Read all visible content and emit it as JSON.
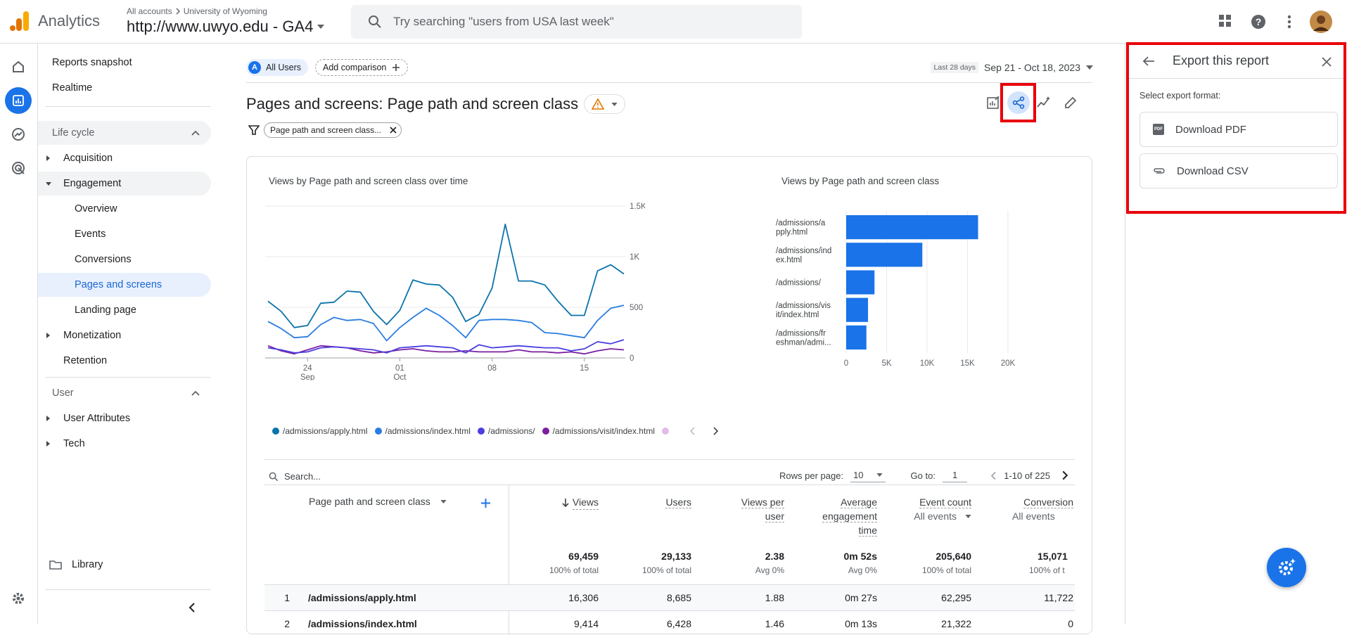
{
  "header": {
    "app_name": "Analytics",
    "breadcrumb_root": "All accounts",
    "breadcrumb_account": "University of Wyoming",
    "property": "http://www.uwyo.edu - GA4",
    "search_placeholder": "Try searching \"users from USA last week\""
  },
  "nav": {
    "reports_snapshot": "Reports snapshot",
    "realtime": "Realtime",
    "lifecycle": "Life cycle",
    "acquisition": "Acquisition",
    "engagement": "Engagement",
    "overview": "Overview",
    "events": "Events",
    "conversions": "Conversions",
    "pages_and_screens": "Pages and screens",
    "landing_page": "Landing page",
    "monetization": "Monetization",
    "retention": "Retention",
    "user": "User",
    "user_attributes": "User Attributes",
    "tech": "Tech",
    "library": "Library"
  },
  "comparison": {
    "segment_badge": "A",
    "segment_label": "All Users",
    "add_label": "Add comparison"
  },
  "date_range": {
    "prefix": "Last 28 days",
    "range": "Sep 21 - Oct 18, 2023"
  },
  "report": {
    "title": "Pages and screens: Page path and screen class",
    "filter_chip": "Page path and screen class..."
  },
  "line_chart": {
    "title": "Views by Page path and screen class over time",
    "y_ticks": [
      "1.5K",
      "1K",
      "500",
      "0"
    ],
    "x_ticks": [
      {
        "day": "24",
        "month": "Sep"
      },
      {
        "day": "01",
        "month": "Oct"
      },
      {
        "day": "08",
        "month": ""
      },
      {
        "day": "15",
        "month": ""
      }
    ],
    "legend": [
      "/admissions/apply.html",
      "/admissions/index.html",
      "/admissions/",
      "/admissions/visit/index.html"
    ]
  },
  "bar_chart": {
    "title": "Views by Page path and screen class",
    "categories": [
      [
        "/admissions/a",
        "pply.html"
      ],
      [
        "/admissions/ind",
        "ex.html"
      ],
      [
        "/admissions/"
      ],
      [
        "/admissions/vis",
        "it/index.html"
      ],
      [
        "/admissions/fr",
        "eshman/admi..."
      ]
    ],
    "x_ticks": [
      "0",
      "5K",
      "10K",
      "15K",
      "20K"
    ]
  },
  "chart_data": [
    {
      "type": "line",
      "title": "Views by Page path and screen class over time",
      "x": [
        "Sep 21",
        "Sep 22",
        "Sep 23",
        "Sep 24",
        "Sep 25",
        "Sep 26",
        "Sep 27",
        "Sep 28",
        "Sep 29",
        "Sep 30",
        "Oct 1",
        "Oct 2",
        "Oct 3",
        "Oct 4",
        "Oct 5",
        "Oct 6",
        "Oct 7",
        "Oct 8",
        "Oct 9",
        "Oct 10",
        "Oct 11",
        "Oct 12",
        "Oct 13",
        "Oct 14",
        "Oct 15",
        "Oct 16",
        "Oct 17",
        "Oct 18"
      ],
      "ylim": [
        0,
        1500
      ],
      "series": [
        {
          "name": "/admissions/apply.html",
          "color": "#0b73ab",
          "values": [
            560,
            460,
            300,
            320,
            540,
            550,
            660,
            650,
            460,
            330,
            470,
            770,
            730,
            720,
            600,
            360,
            430,
            690,
            1320,
            760,
            760,
            720,
            560,
            420,
            420,
            860,
            920,
            830
          ]
        },
        {
          "name": "/admissions/index.html",
          "color": "#2a7de1",
          "values": [
            360,
            290,
            200,
            210,
            330,
            400,
            370,
            380,
            340,
            170,
            300,
            400,
            490,
            420,
            320,
            200,
            370,
            380,
            380,
            370,
            350,
            250,
            240,
            220,
            200,
            370,
            490,
            520
          ]
        },
        {
          "name": "/admissions/",
          "color": "#4b3ee0",
          "values": [
            100,
            80,
            50,
            60,
            100,
            110,
            100,
            90,
            80,
            50,
            100,
            110,
            120,
            110,
            100,
            50,
            130,
            100,
            110,
            120,
            110,
            100,
            100,
            70,
            90,
            160,
            140,
            180
          ]
        },
        {
          "name": "/admissions/visit/index.html",
          "color": "#7b1fa2",
          "values": [
            120,
            70,
            40,
            80,
            120,
            110,
            100,
            70,
            50,
            60,
            80,
            90,
            70,
            60,
            60,
            70,
            60,
            60,
            60,
            80,
            60,
            60,
            50,
            60,
            40,
            70,
            90,
            80
          ]
        }
      ]
    },
    {
      "type": "bar",
      "orientation": "horizontal",
      "title": "Views by Page path and screen class",
      "categories": [
        "/admissions/apply.html",
        "/admissions/index.html",
        "/admissions/",
        "/admissions/visit/index.html",
        "/admissions/freshman/admi..."
      ],
      "values": [
        16306,
        9414,
        3500,
        2700,
        2500
      ],
      "xlim": [
        0,
        20000
      ],
      "color": "#1a73e8"
    }
  ],
  "table": {
    "search_placeholder": "Search...",
    "rows_per_page_label": "Rows per page:",
    "rows_per_page_value": "10",
    "goto_label": "Go to:",
    "goto_value": "1",
    "pagination": "1-10 of 225",
    "dimension_header": "Page path and screen class",
    "headers": {
      "views": "Views",
      "users": "Users",
      "views_per_user": [
        "Views per",
        "user"
      ],
      "avg_engagement": [
        "Average",
        "engagement",
        "time"
      ],
      "event_count": "Event count",
      "event_filter": "All events",
      "conversions": "Conversion",
      "conv_filter": "All events"
    },
    "totals": {
      "views": "69,459",
      "views_sub": "100% of total",
      "users": "29,133",
      "users_sub": "100% of total",
      "vpu": "2.38",
      "vpu_sub": "Avg 0%",
      "aet": "0m 52s",
      "aet_sub": "Avg 0%",
      "events": "205,640",
      "events_sub": "100% of total",
      "conv": "15,071",
      "conv_sub": "100% of t"
    },
    "rows": [
      {
        "idx": "1",
        "path": "/admissions/apply.html",
        "views": "16,306",
        "users": "8,685",
        "vpu": "1.88",
        "aet": "0m 27s",
        "events": "62,295",
        "conv": "11,722"
      },
      {
        "idx": "2",
        "path": "/admissions/index.html",
        "views": "9,414",
        "users": "6,428",
        "vpu": "1.46",
        "aet": "0m 13s",
        "events": "21,322",
        "conv": "0"
      }
    ]
  },
  "export_panel": {
    "title": "Export this report",
    "subtitle": "Select export format:",
    "pdf": "Download PDF",
    "pdf_badge": "PDF",
    "csv": "Download CSV"
  }
}
